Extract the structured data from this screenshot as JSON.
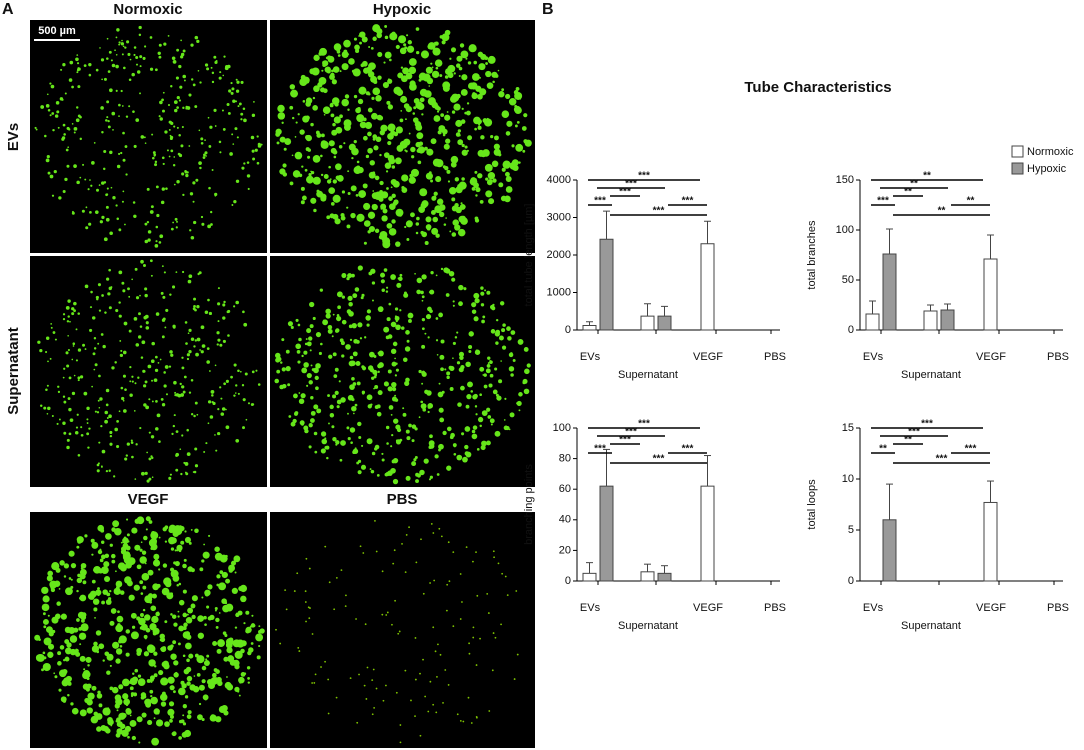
{
  "panel_a": {
    "label": "A",
    "columns": [
      "Normoxic",
      "Hypoxic"
    ],
    "rows": [
      "EVs",
      "Supernatant"
    ],
    "bottom": [
      "VEGF",
      "PBS"
    ],
    "scale_bar": "500 µm"
  },
  "panel_b": {
    "label": "B",
    "title": "Tube Characteristics"
  },
  "chart_data": [
    {
      "type": "bar",
      "ylabel": "total tube length [µm]",
      "categories": [
        "EVs",
        "Supernatant",
        "VEGF",
        "PBS"
      ],
      "series": [
        {
          "name": "Normoxic",
          "color": "#ffffff",
          "values": [
            120,
            370,
            2300,
            0
          ],
          "errors": [
            100,
            330,
            600,
            0
          ]
        },
        {
          "name": "Hypoxic",
          "color": "#999999",
          "values": [
            2420,
            370,
            null,
            null
          ],
          "errors": [
            750,
            260,
            null,
            null
          ]
        }
      ],
      "ylim": [
        0,
        4000
      ],
      "yticks": [
        0,
        1000,
        2000,
        3000,
        4000
      ],
      "significance": [
        "***",
        "***",
        "***",
        "***",
        "***",
        "***"
      ]
    },
    {
      "type": "bar",
      "ylabel": "total branches",
      "categories": [
        "EVs",
        "Supernatant",
        "VEGF",
        "PBS"
      ],
      "series": [
        {
          "name": "Normoxic",
          "color": "#ffffff",
          "values": [
            16,
            19,
            71,
            0
          ],
          "errors": [
            13,
            6,
            24,
            0
          ]
        },
        {
          "name": "Hypoxic",
          "color": "#999999",
          "values": [
            76,
            20,
            null,
            null
          ],
          "errors": [
            25,
            6,
            null,
            null
          ]
        }
      ],
      "ylim": [
        0,
        150
      ],
      "yticks": [
        0,
        50,
        100,
        150
      ],
      "legend": "upper right",
      "significance": [
        "**",
        "**",
        "**",
        "***",
        "**",
        "**"
      ]
    },
    {
      "type": "bar",
      "ylabel": "branching points",
      "categories": [
        "EVs",
        "Supernatant",
        "VEGF",
        "PBS"
      ],
      "series": [
        {
          "name": "Normoxic",
          "color": "#ffffff",
          "values": [
            5,
            6,
            62,
            0
          ],
          "errors": [
            7,
            5,
            20,
            0
          ]
        },
        {
          "name": "Hypoxic",
          "color": "#999999",
          "values": [
            62,
            5,
            null,
            null
          ],
          "errors": [
            24,
            5,
            null,
            null
          ]
        }
      ],
      "ylim": [
        0,
        100
      ],
      "yticks": [
        0,
        20,
        40,
        60,
        80,
        100
      ],
      "significance": [
        "***",
        "***",
        "***",
        "***",
        "***",
        "***"
      ]
    },
    {
      "type": "bar",
      "ylabel": "total loops",
      "categories": [
        "EVs",
        "Supernatant",
        "VEGF",
        "PBS"
      ],
      "series": [
        {
          "name": "Normoxic",
          "color": "#ffffff",
          "values": [
            0,
            0,
            7.7,
            0
          ],
          "errors": [
            0,
            0,
            2.1,
            0
          ]
        },
        {
          "name": "Hypoxic",
          "color": "#999999",
          "values": [
            6,
            0,
            null,
            null
          ],
          "errors": [
            3.5,
            0,
            null,
            null
          ]
        }
      ],
      "ylim": [
        0,
        15
      ],
      "yticks": [
        0,
        5,
        10,
        15
      ],
      "significance": [
        "***",
        "***",
        "**",
        "**",
        "***",
        "***"
      ]
    }
  ]
}
